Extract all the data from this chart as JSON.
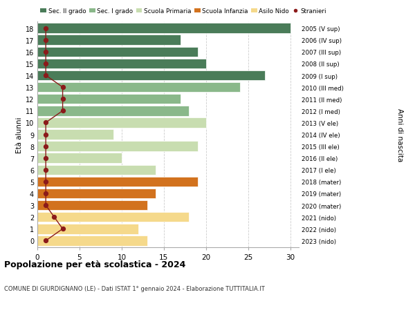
{
  "ages": [
    18,
    17,
    16,
    15,
    14,
    13,
    12,
    11,
    10,
    9,
    8,
    7,
    6,
    5,
    4,
    3,
    2,
    1,
    0
  ],
  "bar_values": [
    30,
    17,
    19,
    20,
    27,
    24,
    17,
    18,
    20,
    9,
    19,
    10,
    14,
    19,
    14,
    13,
    18,
    12,
    13
  ],
  "bar_colors": [
    "#4a7c59",
    "#4a7c59",
    "#4a7c59",
    "#4a7c59",
    "#4a7c59",
    "#8ab88a",
    "#8ab88a",
    "#8ab88a",
    "#c8ddb0",
    "#c8ddb0",
    "#c8ddb0",
    "#c8ddb0",
    "#c8ddb0",
    "#d2721e",
    "#d2721e",
    "#d2721e",
    "#f5d98b",
    "#f5d98b",
    "#f5d98b"
  ],
  "right_labels": [
    "2005 (V sup)",
    "2006 (IV sup)",
    "2007 (III sup)",
    "2008 (II sup)",
    "2009 (I sup)",
    "2010 (III med)",
    "2011 (II med)",
    "2012 (I med)",
    "2013 (V ele)",
    "2014 (IV ele)",
    "2015 (III ele)",
    "2016 (II ele)",
    "2017 (I ele)",
    "2018 (mater)",
    "2019 (mater)",
    "2020 (mater)",
    "2021 (nido)",
    "2022 (nido)",
    "2023 (nido)"
  ],
  "stranieri_x": [
    1,
    1,
    1,
    1,
    1,
    3,
    3,
    3,
    1,
    1,
    1,
    1,
    1,
    1,
    1,
    1,
    2,
    3,
    1
  ],
  "legend_labels": [
    "Sec. II grado",
    "Sec. I grado",
    "Scuola Primaria",
    "Scuola Infanzia",
    "Asilo Nido",
    "Stranieri"
  ],
  "legend_colors": [
    "#4a7c59",
    "#8ab88a",
    "#c8ddb0",
    "#d2721e",
    "#f5d98b",
    "#8b1a1a"
  ],
  "title": "Popolazione per età scolastica - 2024",
  "subtitle": "COMUNE DI GIURDIGNANO (LE) - Dati ISTAT 1° gennaio 2024 - Elaborazione TUTTITALIA.IT",
  "ylabel": "Età alunni",
  "ylabel2": "Anni di nascita",
  "xlim": [
    0,
    31
  ],
  "bg_color": "#ffffff",
  "grid_color": "#cccccc",
  "bar_height": 0.85,
  "stranieri_color": "#8b1a1a",
  "stranieri_line_color": "#8b1a1a"
}
